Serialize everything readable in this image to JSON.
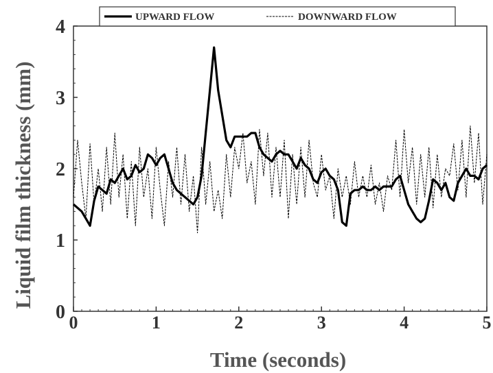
{
  "chart_data": {
    "type": "line",
    "title": "",
    "xlabel": "Time (seconds)",
    "ylabel": "Liquid film thickness (mm)",
    "xlim": [
      0,
      5
    ],
    "ylim": [
      0,
      4
    ],
    "xticks": [
      "0",
      "1",
      "2",
      "3",
      "4",
      "5"
    ],
    "yticks": [
      "0",
      "1",
      "2",
      "3",
      "4"
    ],
    "grid": false,
    "legend_position": "top",
    "series": [
      {
        "name": "UPWARD FLOW",
        "style": "solid-thick",
        "color": "#000000",
        "x": [
          0,
          0.05,
          0.1,
          0.15,
          0.2,
          0.25,
          0.3,
          0.35,
          0.4,
          0.45,
          0.5,
          0.55,
          0.6,
          0.65,
          0.7,
          0.75,
          0.8,
          0.85,
          0.9,
          0.95,
          1.0,
          1.05,
          1.1,
          1.15,
          1.2,
          1.25,
          1.3,
          1.35,
          1.4,
          1.45,
          1.5,
          1.55,
          1.6,
          1.65,
          1.7,
          1.75,
          1.8,
          1.85,
          1.9,
          1.95,
          2.0,
          2.05,
          2.1,
          2.15,
          2.2,
          2.25,
          2.3,
          2.35,
          2.4,
          2.45,
          2.5,
          2.55,
          2.6,
          2.65,
          2.7,
          2.75,
          2.8,
          2.85,
          2.9,
          2.95,
          3.0,
          3.05,
          3.1,
          3.15,
          3.2,
          3.25,
          3.3,
          3.35,
          3.4,
          3.45,
          3.5,
          3.55,
          3.6,
          3.65,
          3.7,
          3.75,
          3.8,
          3.85,
          3.9,
          3.95,
          4.0,
          4.05,
          4.1,
          4.15,
          4.2,
          4.25,
          4.3,
          4.35,
          4.4,
          4.45,
          4.5,
          4.55,
          4.6,
          4.65,
          4.7,
          4.75,
          4.8,
          4.85,
          4.9,
          4.95,
          5.0
        ],
        "y": [
          1.5,
          1.45,
          1.4,
          1.3,
          1.2,
          1.55,
          1.75,
          1.7,
          1.65,
          1.85,
          1.8,
          1.9,
          2.0,
          1.85,
          1.9,
          2.05,
          1.95,
          2.0,
          2.2,
          2.15,
          2.05,
          2.15,
          2.2,
          2.0,
          1.8,
          1.7,
          1.65,
          1.6,
          1.55,
          1.5,
          1.6,
          1.9,
          2.5,
          3.1,
          3.7,
          3.1,
          2.75,
          2.4,
          2.3,
          2.45,
          2.45,
          2.45,
          2.45,
          2.5,
          2.5,
          2.3,
          2.2,
          2.15,
          2.1,
          2.2,
          2.25,
          2.2,
          2.2,
          2.1,
          2.0,
          2.15,
          2.05,
          2.0,
          1.85,
          1.8,
          1.95,
          2.0,
          1.9,
          1.85,
          1.7,
          1.25,
          1.2,
          1.65,
          1.7,
          1.7,
          1.75,
          1.7,
          1.7,
          1.75,
          1.7,
          1.75,
          1.75,
          1.75,
          1.85,
          1.9,
          1.7,
          1.5,
          1.4,
          1.3,
          1.25,
          1.3,
          1.55,
          1.85,
          1.8,
          1.7,
          1.8,
          1.6,
          1.55,
          1.8,
          1.9,
          2.0,
          1.9,
          1.9,
          1.85,
          2.0,
          2.05
        ]
      },
      {
        "name": "DOWNWARD FLOW",
        "style": "thin-dashed",
        "color": "#000000",
        "x": [
          0,
          0.05,
          0.1,
          0.15,
          0.2,
          0.25,
          0.3,
          0.35,
          0.4,
          0.45,
          0.5,
          0.55,
          0.6,
          0.65,
          0.7,
          0.75,
          0.8,
          0.85,
          0.9,
          0.95,
          1.0,
          1.05,
          1.1,
          1.15,
          1.2,
          1.25,
          1.3,
          1.35,
          1.4,
          1.45,
          1.5,
          1.55,
          1.6,
          1.65,
          1.7,
          1.75,
          1.8,
          1.85,
          1.9,
          1.95,
          2.0,
          2.05,
          2.1,
          2.15,
          2.2,
          2.25,
          2.3,
          2.35,
          2.4,
          2.45,
          2.5,
          2.55,
          2.6,
          2.65,
          2.7,
          2.75,
          2.8,
          2.85,
          2.9,
          2.95,
          3.0,
          3.05,
          3.1,
          3.15,
          3.2,
          3.25,
          3.3,
          3.35,
          3.4,
          3.45,
          3.5,
          3.55,
          3.6,
          3.65,
          3.7,
          3.75,
          3.8,
          3.85,
          3.9,
          3.95,
          4.0,
          4.05,
          4.1,
          4.15,
          4.2,
          4.25,
          4.3,
          4.35,
          4.4,
          4.45,
          4.5,
          4.55,
          4.6,
          4.65,
          4.7,
          4.75,
          4.8,
          4.85,
          4.9,
          4.95,
          5.0
        ],
        "y": [
          1.6,
          2.4,
          1.8,
          1.3,
          2.35,
          1.5,
          2.0,
          1.4,
          2.3,
          1.5,
          2.5,
          1.6,
          2.2,
          1.3,
          2.1,
          1.2,
          2.3,
          1.6,
          2.0,
          1.3,
          2.3,
          1.7,
          1.2,
          2.1,
          1.6,
          2.3,
          1.5,
          2.2,
          1.4,
          1.9,
          1.1,
          2.3,
          1.5,
          2.1,
          1.4,
          1.7,
          1.3,
          2.2,
          1.6,
          2.3,
          2.0,
          2.5,
          1.8,
          2.1,
          1.5,
          2.55,
          1.9,
          2.5,
          1.6,
          2.3,
          1.6,
          2.4,
          1.3,
          2.2,
          1.5,
          2.3,
          1.6,
          2.4,
          1.8,
          1.6,
          2.2,
          1.7,
          1.9,
          1.3,
          2.0,
          1.6,
          1.9,
          1.5,
          2.1,
          1.6,
          1.9,
          1.6,
          2.05,
          1.5,
          1.8,
          1.4,
          1.9,
          1.7,
          2.4,
          1.6,
          2.55,
          1.8,
          2.3,
          1.5,
          2.2,
          1.6,
          2.3,
          1.45,
          2.2,
          1.6,
          2.0,
          1.9,
          2.35,
          1.7,
          2.4,
          1.6,
          2.6,
          1.8,
          2.5,
          1.5,
          2.2
        ]
      }
    ]
  }
}
